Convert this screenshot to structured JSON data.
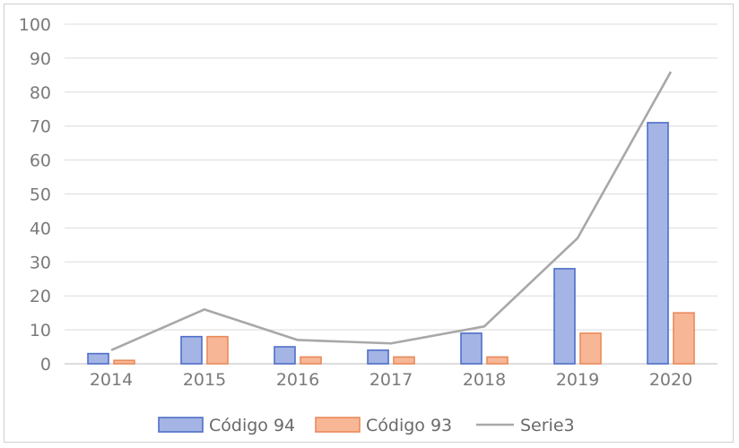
{
  "chart_data": {
    "type": "bar",
    "categories": [
      "2014",
      "2015",
      "2016",
      "2017",
      "2018",
      "2019",
      "2020"
    ],
    "series": [
      {
        "name": "Código 94",
        "type": "bar",
        "values": [
          3,
          8,
          5,
          4,
          9,
          28,
          71
        ],
        "fill": "#a4b4e4",
        "stroke": "#4f6fc8"
      },
      {
        "name": "Código 93",
        "type": "bar",
        "values": [
          1,
          8,
          2,
          2,
          2,
          9,
          15
        ],
        "fill": "#f7b796",
        "stroke": "#e98a5b"
      },
      {
        "name": "Serie3",
        "type": "line",
        "values": [
          4,
          16,
          7,
          6,
          11,
          37,
          86
        ],
        "stroke": "#a8a8a8"
      }
    ],
    "ylim": [
      0,
      100
    ],
    "yticks": [
      0,
      10,
      20,
      30,
      40,
      50,
      60,
      70,
      80,
      90,
      100
    ],
    "grid": true,
    "legend": "bottom",
    "title": "",
    "xlabel": "",
    "ylabel": ""
  }
}
